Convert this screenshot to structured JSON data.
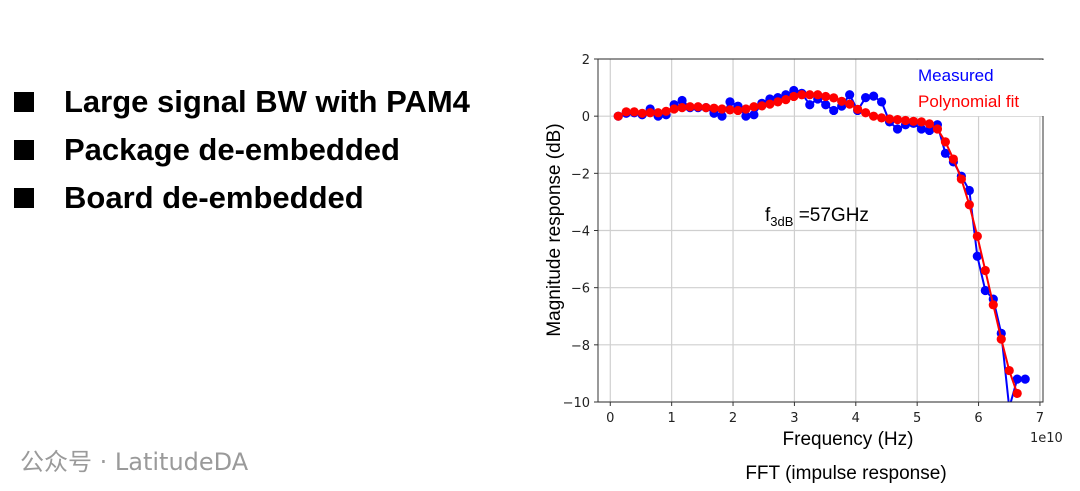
{
  "bullets": [
    "Large signal BW with PAM4",
    "Package de-embedded",
    "Board de-embedded"
  ],
  "caption": "FFT (impulse response)",
  "watermark": "公众号 · LatitudeDA",
  "chart_data": {
    "type": "line",
    "xlabel": "Frequency (Hz)",
    "xscale_label": "1e10",
    "ylabel": "Magnitude response (dB)",
    "xlim": [
      -0.2,
      7.05
    ],
    "ylim": [
      -10,
      2
    ],
    "xticks": [
      0,
      1,
      2,
      3,
      4,
      5,
      6,
      7
    ],
    "yticks": [
      2,
      0,
      -2,
      -4,
      -6,
      -8,
      -10
    ],
    "grid": true,
    "legend_position": "top-right",
    "annotation": {
      "main": "f",
      "sub": "3dB",
      "rest": " =57GHz"
    },
    "series": [
      {
        "name": "Measured",
        "color": "#0000ff",
        "x": [
          0.13,
          0.26,
          0.39,
          0.52,
          0.65,
          0.78,
          0.91,
          1.04,
          1.17,
          1.3,
          1.43,
          1.56,
          1.69,
          1.82,
          1.95,
          2.08,
          2.21,
          2.34,
          2.47,
          2.6,
          2.73,
          2.86,
          2.99,
          3.12,
          3.25,
          3.38,
          3.51,
          3.64,
          3.77,
          3.9,
          4.03,
          4.16,
          4.29,
          4.42,
          4.55,
          4.68,
          4.81,
          4.94,
          5.07,
          5.2,
          5.33,
          5.46,
          5.59,
          5.72,
          5.85,
          5.98,
          6.11,
          6.24,
          6.37,
          6.5,
          6.63,
          6.76
        ],
        "y": [
          0,
          0.1,
          0.12,
          0.05,
          0.25,
          0.0,
          0.05,
          0.4,
          0.55,
          0.3,
          0.3,
          0.3,
          0.1,
          0.0,
          0.5,
          0.35,
          0.0,
          0.05,
          0.45,
          0.6,
          0.65,
          0.75,
          0.9,
          0.8,
          0.4,
          0.6,
          0.4,
          0.2,
          0.35,
          0.75,
          0.2,
          0.65,
          0.7,
          0.5,
          -0.2,
          -0.45,
          -0.3,
          -0.25,
          -0.45,
          -0.5,
          -0.3,
          -1.3,
          -1.6,
          -2.1,
          -2.6,
          -4.9,
          -6.1,
          -6.4,
          -7.6,
          -10.2,
          -9.2,
          -9.2
        ]
      },
      {
        "name": "Polynomial fit",
        "color": "#ff0000",
        "x": [
          0.13,
          0.26,
          0.39,
          0.52,
          0.65,
          0.78,
          0.91,
          1.04,
          1.17,
          1.3,
          1.43,
          1.56,
          1.69,
          1.82,
          1.95,
          2.08,
          2.21,
          2.34,
          2.47,
          2.6,
          2.73,
          2.86,
          2.99,
          3.12,
          3.25,
          3.38,
          3.51,
          3.64,
          3.77,
          3.9,
          4.03,
          4.16,
          4.29,
          4.42,
          4.55,
          4.68,
          4.81,
          4.94,
          5.07,
          5.2,
          5.33,
          5.46,
          5.59,
          5.72,
          5.85,
          5.98,
          6.11,
          6.24,
          6.37,
          6.5,
          6.63
        ],
        "y": [
          0,
          0.15,
          0.15,
          0.1,
          0.12,
          0.12,
          0.17,
          0.25,
          0.3,
          0.33,
          0.33,
          0.3,
          0.28,
          0.25,
          0.22,
          0.2,
          0.25,
          0.33,
          0.36,
          0.42,
          0.5,
          0.58,
          0.69,
          0.75,
          0.75,
          0.75,
          0.69,
          0.64,
          0.52,
          0.42,
          0.24,
          0.12,
          0,
          -0.06,
          -0.1,
          -0.12,
          -0.15,
          -0.18,
          -0.2,
          -0.27,
          -0.45,
          -0.9,
          -1.5,
          -2.2,
          -3.1,
          -4.2,
          -5.4,
          -6.6,
          -7.8,
          -8.9,
          -9.7
        ]
      }
    ]
  }
}
